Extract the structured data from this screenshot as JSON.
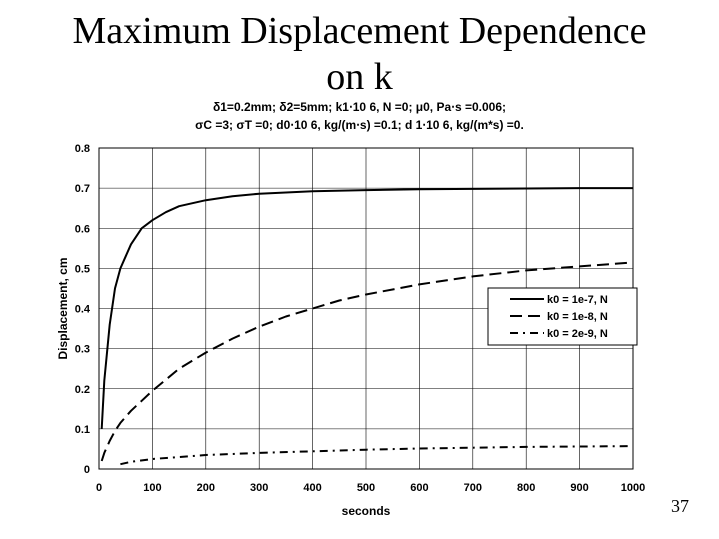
{
  "slide": {
    "title_line1": "Maximum Displacement Dependence",
    "title_line2": "on k",
    "params_line1": "δ1=0.2mm;  δ2=5mm;   k1⋅10 6, N =0;   μ0, Pa⋅s =0.006;",
    "params_line2": "σC =3;   σT =0;   d0⋅10 6, kg/(m⋅s) =0.1;    d 1⋅10 6, kg/(m*s) =0.",
    "page_number": "37"
  },
  "chart_data": {
    "type": "line",
    "xlabel": "seconds",
    "ylabel": "Displacement, cm",
    "xlim": [
      0,
      1000
    ],
    "ylim": [
      0,
      0.8
    ],
    "x_ticks": [
      "0",
      "100",
      "200",
      "300",
      "400",
      "500",
      "600",
      "700",
      "800",
      "900",
      "1000"
    ],
    "y_ticks": [
      "0",
      "0.1",
      "0.2",
      "0.3",
      "0.4",
      "0.5",
      "0.6",
      "0.7",
      "0.8"
    ],
    "grid": true,
    "legend_position": "right-middle",
    "series": [
      {
        "name": "k0 = 1e-7, N",
        "dash": "solid",
        "x": [
          5,
          10,
          20,
          30,
          40,
          50,
          60,
          80,
          100,
          125,
          150,
          200,
          250,
          300,
          400,
          500,
          600,
          700,
          800,
          900,
          1000
        ],
        "y": [
          0.1,
          0.22,
          0.36,
          0.45,
          0.5,
          0.53,
          0.56,
          0.6,
          0.62,
          0.64,
          0.655,
          0.67,
          0.68,
          0.686,
          0.692,
          0.695,
          0.697,
          0.698,
          0.699,
          0.7,
          0.7
        ]
      },
      {
        "name": "k0 = 1e-8, N",
        "dash": "long-dash",
        "x": [
          5,
          10,
          20,
          30,
          40,
          50,
          60,
          80,
          100,
          150,
          200,
          250,
          300,
          350,
          400,
          450,
          500,
          600,
          700,
          800,
          900,
          1000
        ],
        "y": [
          0.02,
          0.04,
          0.07,
          0.095,
          0.115,
          0.13,
          0.145,
          0.17,
          0.195,
          0.25,
          0.29,
          0.325,
          0.355,
          0.38,
          0.4,
          0.42,
          0.435,
          0.46,
          0.48,
          0.495,
          0.505,
          0.515
        ]
      },
      {
        "name": "k0 = 2e-9, N",
        "dash": "dash-dot",
        "x": [
          40,
          60,
          100,
          150,
          200,
          300,
          400,
          500,
          600,
          700,
          800,
          900,
          1000
        ],
        "y": [
          0.012,
          0.018,
          0.025,
          0.03,
          0.035,
          0.04,
          0.044,
          0.048,
          0.051,
          0.053,
          0.055,
          0.056,
          0.057
        ]
      }
    ]
  }
}
